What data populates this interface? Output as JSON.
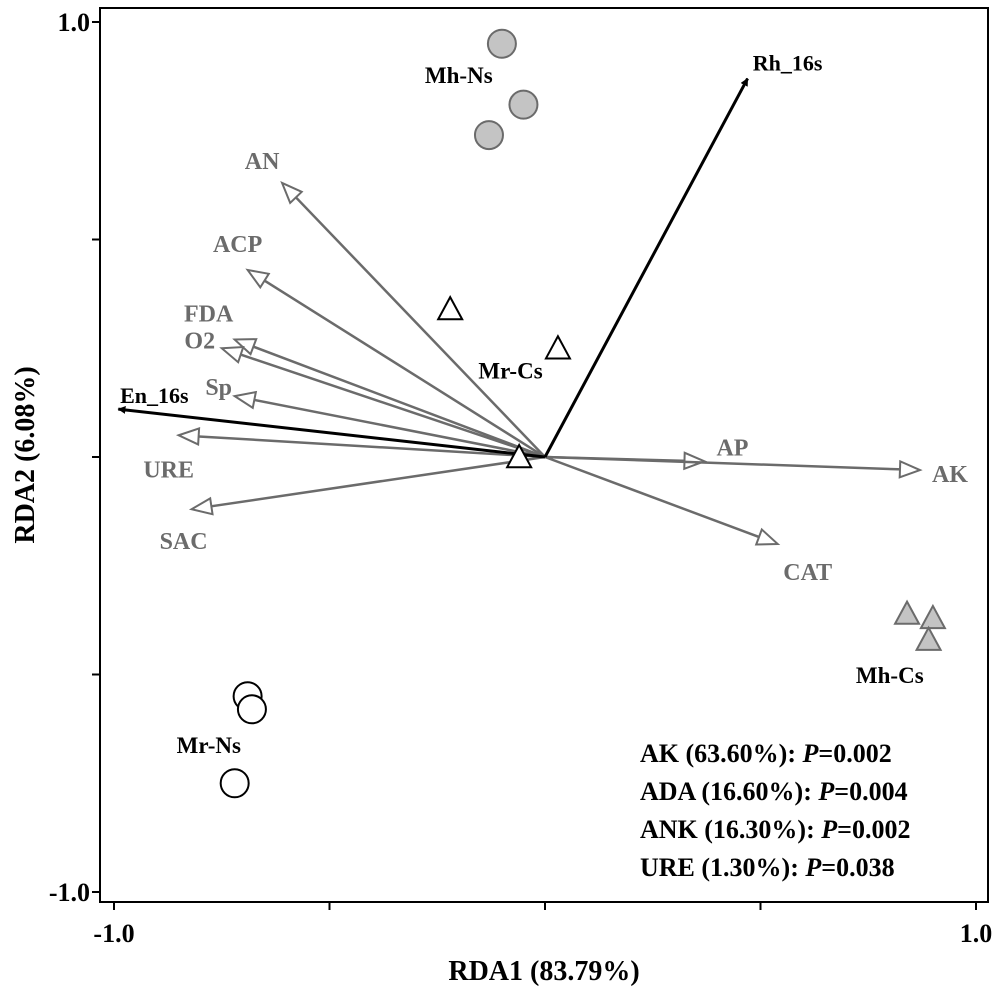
{
  "chart_data": {
    "type": "scatter",
    "title": "",
    "xlabel": "RDA1 (83.79%)",
    "ylabel": "RDA2 (6.08%)",
    "xlim": [
      -1.0,
      1.0
    ],
    "ylim": [
      -1.0,
      1.0
    ],
    "x_tick_labels": [
      {
        "value": -1.0,
        "label": "-1.0"
      },
      {
        "value": 1.0,
        "label": "1.0"
      }
    ],
    "y_tick_labels": [
      {
        "value": 1.0,
        "label": "1.0"
      },
      {
        "value": -1.0,
        "label": "-1.0"
      }
    ],
    "minor_ticks": [
      -0.5,
      0.0,
      0.5
    ],
    "grid": false,
    "response_vectors": [
      {
        "label": "Rh_16s",
        "x": 0.47,
        "y": 0.87
      },
      {
        "label": "En_16s",
        "x": -0.99,
        "y": 0.11
      }
    ],
    "environmental_vectors": [
      {
        "label": "AN",
        "x": -0.61,
        "y": 0.63
      },
      {
        "label": "ACP",
        "x": -0.69,
        "y": 0.43
      },
      {
        "label": "FDA",
        "x": -0.72,
        "y": 0.27
      },
      {
        "label": "O2",
        "x": -0.75,
        "y": 0.25
      },
      {
        "label": "Sp",
        "x": -0.72,
        "y": 0.14
      },
      {
        "label": "URE",
        "x": -0.85,
        "y": 0.05
      },
      {
        "label": "SAC",
        "x": -0.82,
        "y": -0.12
      },
      {
        "label": "AP",
        "x": 0.37,
        "y": -0.01
      },
      {
        "label": "AK",
        "x": 0.87,
        "y": -0.03
      },
      {
        "label": "CAT",
        "x": 0.54,
        "y": -0.2
      }
    ],
    "groups": [
      {
        "label": "Mh-Ns",
        "marker": "circle",
        "fill": "#c4c4c4",
        "edge": "#6b6b6b",
        "points": [
          [
            -0.1,
            0.95
          ],
          [
            -0.05,
            0.81
          ],
          [
            -0.13,
            0.74
          ]
        ]
      },
      {
        "label": "Mr-Cs",
        "marker": "triangle",
        "fill": "#ffffff",
        "edge": "#000000",
        "points": [
          [
            -0.22,
            0.34
          ],
          [
            0.03,
            0.25
          ],
          [
            -0.06,
            0.0
          ]
        ]
      },
      {
        "label": "Mh-Cs",
        "marker": "triangle",
        "fill": "#c4c4c4",
        "edge": "#6b6b6b",
        "points": [
          [
            0.84,
            -0.36
          ],
          [
            0.9,
            -0.37
          ],
          [
            0.89,
            -0.42
          ]
        ]
      },
      {
        "label": "Mr-Ns",
        "marker": "circle",
        "fill": "#ffffff",
        "edge": "#000000",
        "points": [
          [
            -0.69,
            -0.55
          ],
          [
            -0.68,
            -0.58
          ],
          [
            -0.72,
            -0.75
          ]
        ]
      }
    ],
    "annotations": [
      {
        "name": "AK",
        "label": "AK (63.60%): ",
        "p_symbol": "P",
        "p_value": "=0.002"
      },
      {
        "name": "ADA",
        "label": "ADA (16.60%): ",
        "p_symbol": "P",
        "p_value": "=0.004"
      },
      {
        "name": "ANK",
        "label": "ANK (16.30%): ",
        "p_symbol": "P",
        "p_value": "=0.002"
      },
      {
        "name": "URE",
        "label": "URE (1.30%): ",
        "p_symbol": "P",
        "p_value": "=0.038"
      }
    ],
    "colors": {
      "response_vector": "#000000",
      "environmental_vector": "#6b6b6b",
      "environmental_label": "#6b6b6b"
    }
  }
}
